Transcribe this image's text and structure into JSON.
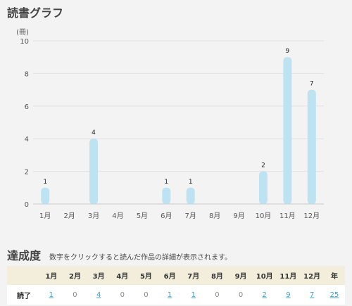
{
  "graph_section": {
    "title": "読書グラフ"
  },
  "chart_data": {
    "type": "bar",
    "ylabel": "(冊)",
    "categories": [
      "1月",
      "2月",
      "3月",
      "4月",
      "5月",
      "6月",
      "7月",
      "8月",
      "9月",
      "10月",
      "11月",
      "12月"
    ],
    "values": [
      1,
      0,
      4,
      0,
      0,
      1,
      1,
      0,
      0,
      2,
      9,
      7
    ],
    "ylim": [
      0,
      10
    ],
    "yticks": [
      0,
      2,
      4,
      6,
      8,
      10
    ],
    "grid": true,
    "bar_color": "#bde3f2"
  },
  "achievement": {
    "title": "達成度",
    "description": "数字をクリックすると読んだ作品の詳細が表示されます。",
    "header_months": [
      "1月",
      "2月",
      "3月",
      "4月",
      "5月",
      "6月",
      "7月",
      "8月",
      "9月",
      "10月",
      "11月",
      "12月"
    ],
    "header_year": "年",
    "row_label": "読了",
    "counts": [
      "1",
      "0",
      "4",
      "0",
      "0",
      "1",
      "1",
      "0",
      "0",
      "2",
      "9",
      "7"
    ],
    "year_total": "25",
    "colors": {
      "link": "#3aa0d8",
      "header_bg": "#f3eedb"
    }
  }
}
